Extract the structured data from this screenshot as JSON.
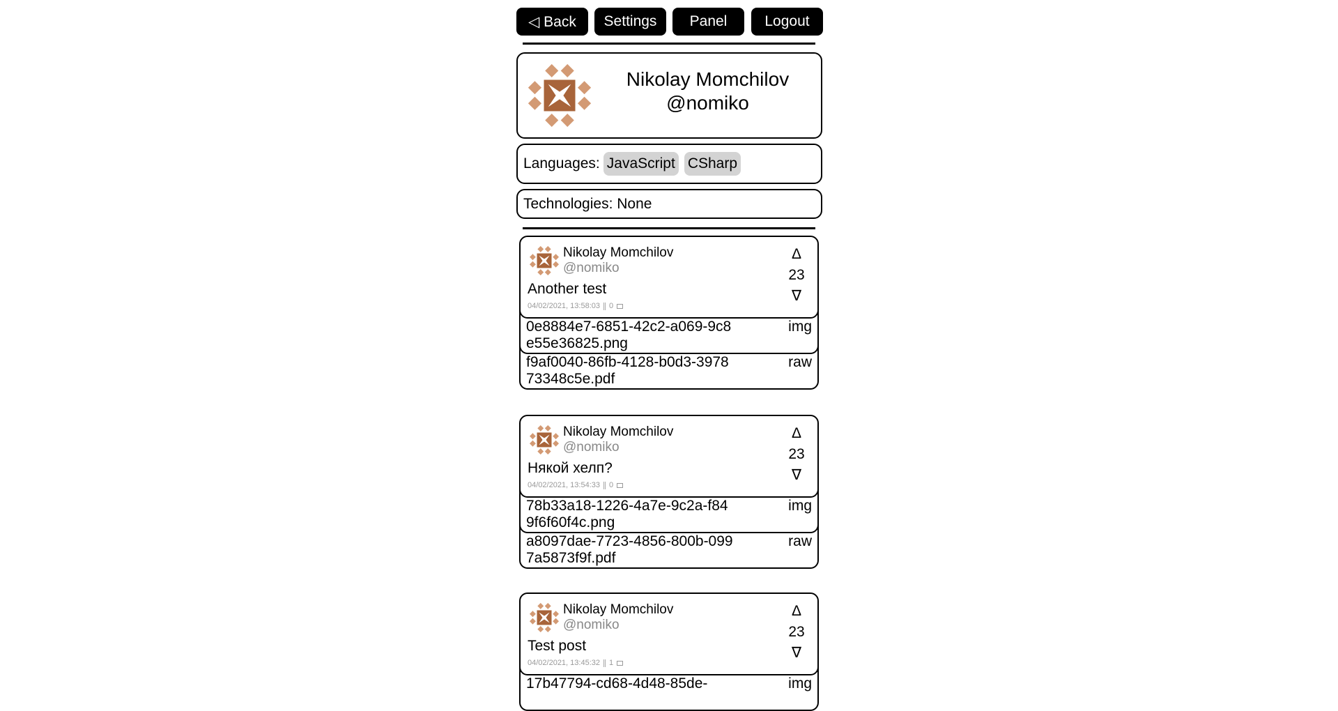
{
  "nav": {
    "back": "◁ Back",
    "settings": "Settings",
    "panel": "Panel",
    "logout": "Logout"
  },
  "profile": {
    "name": "Nikolay Momchilov",
    "handle": "@nomiko",
    "avatar_colors": {
      "dark": "#a8643a",
      "light": "#d39a74"
    }
  },
  "languages": {
    "label": "Languages:",
    "items": [
      "JavaScript",
      "CSharp"
    ]
  },
  "technologies": {
    "label": "Technologies: None"
  },
  "posts": [
    {
      "name": "Nikolay Momchilov",
      "handle": "@nomiko",
      "text": "Another test",
      "date": "04/02/2021, 13:58:03",
      "comments": "0",
      "votes": "23",
      "up": "Δ",
      "down": "∇",
      "files": [
        {
          "name": "0e8884e7-6851-42c2-a069-9c8e55e36825.png",
          "type": "img"
        },
        {
          "name": "f9af0040-86fb-4128-b0d3-397873348c5e.pdf",
          "type": "raw"
        }
      ]
    },
    {
      "name": "Nikolay Momchilov",
      "handle": "@nomiko",
      "text": "Някой хелп?",
      "date": "04/02/2021, 13:54:33",
      "comments": "0",
      "votes": "23",
      "up": "Δ",
      "down": "∇",
      "files": [
        {
          "name": "78b33a18-1226-4a7e-9c2a-f849f6f60f4c.png",
          "type": "img"
        },
        {
          "name": "a8097dae-7723-4856-800b-0997a5873f9f.pdf",
          "type": "raw"
        }
      ]
    },
    {
      "name": "Nikolay Momchilov",
      "handle": "@nomiko",
      "text": "Test post",
      "date": "04/02/2021, 13:45:32",
      "comments": "1",
      "votes": "23",
      "up": "Δ",
      "down": "∇",
      "files": [
        {
          "name": "17b47794-cd68-4d48-85de-",
          "type": "img"
        }
      ]
    }
  ]
}
